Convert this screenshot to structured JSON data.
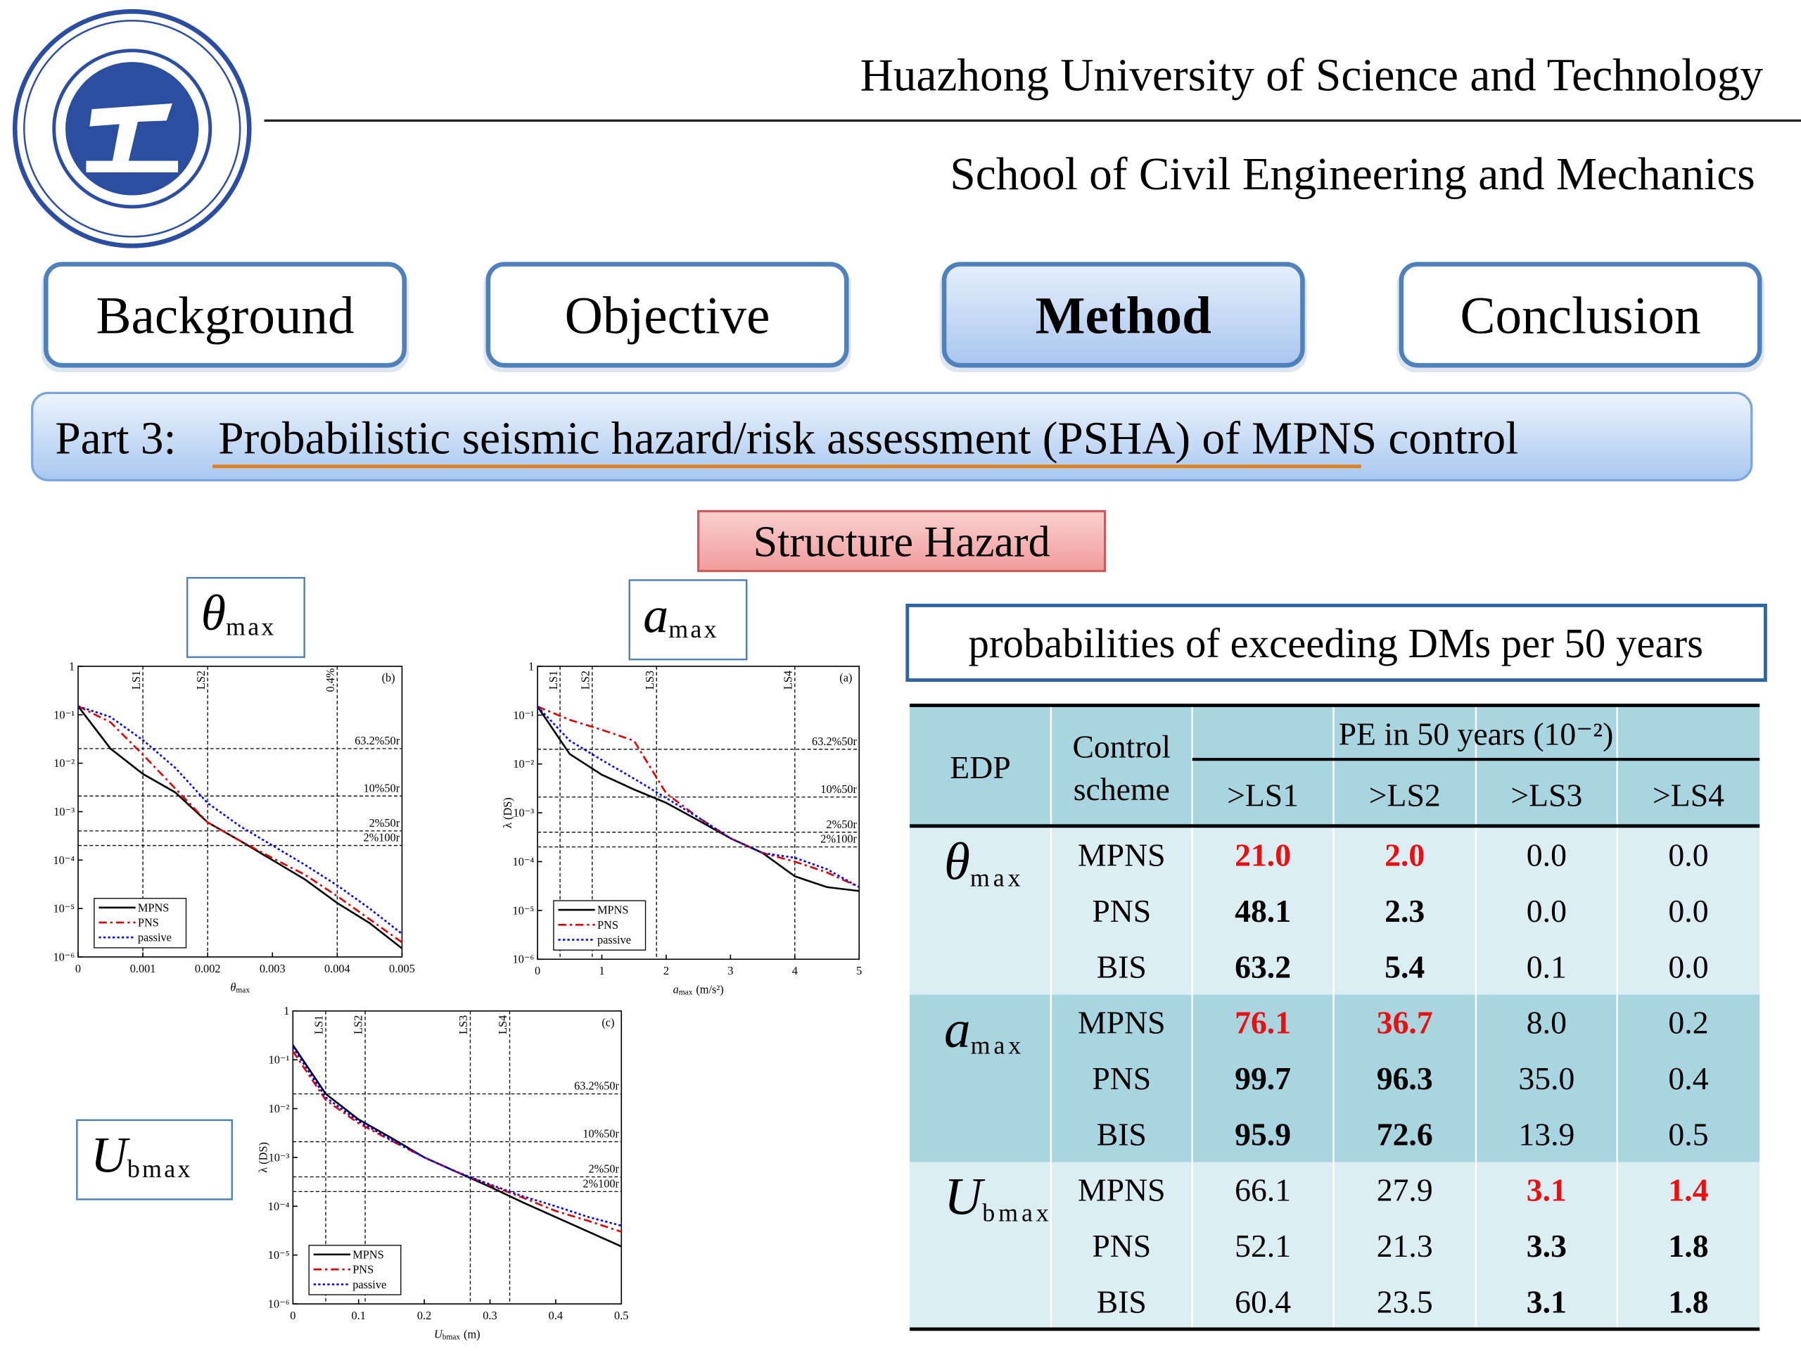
{
  "header": {
    "university": "Huazhong University of Science and Technology",
    "school": "School of Civil Engineering and Mechanics"
  },
  "nav": [
    "Background",
    "Objective",
    "Method",
    "Conclusion"
  ],
  "part": {
    "label": "Part 3:",
    "title": "Probabilistic seismic hazard/risk assessment (PSHA) of MPNS control"
  },
  "section": "Structure Hazard",
  "chart_data": [
    {
      "type": "line",
      "title": "θ",
      "title_sub": "max",
      "panel": "(b)",
      "xlabel": {
        "text": "θ",
        "sub": "max"
      },
      "x": [
        0,
        0.0005,
        0.001,
        0.0015,
        0.002,
        0.0025,
        0.003,
        0.0035,
        0.004,
        0.0045,
        0.005
      ],
      "xlim": [
        0,
        0.005
      ],
      "xticks": [
        0,
        0.001,
        0.002,
        0.003,
        0.004,
        0.005
      ],
      "ylim": [
        1e-06,
        1
      ],
      "yticks": [
        {
          "value": 1e-06,
          "label": "10⁻⁶"
        },
        {
          "value": 1e-05,
          "label": "10⁻⁵"
        },
        {
          "value": 0.0001,
          "label": "10⁻⁴"
        },
        {
          "value": 0.001,
          "label": "10⁻³"
        },
        {
          "value": 0.01,
          "label": "10⁻²"
        },
        {
          "value": 0.1,
          "label": "10⁻¹"
        },
        1
      ],
      "log_y": true,
      "vlines": [
        {
          "value": 0.001,
          "label": "LS1"
        },
        {
          "value": 0.002,
          "label": "LS2"
        },
        {
          "value": 0.004,
          "label": "0.4%"
        }
      ],
      "hlines": [
        {
          "value": 0.02,
          "label": "63.2%50r"
        },
        {
          "value": 0.0021,
          "label": "10%50r"
        },
        {
          "value": 0.0004,
          "label": "2%50r"
        },
        {
          "value": 0.0002,
          "label": "2%100r"
        }
      ],
      "legend": "lower left",
      "series": [
        {
          "name": "MPNS",
          "color": "#000000",
          "dash": "solid",
          "values": [
            0.15,
            0.02,
            0.006,
            0.0025,
            0.0006,
            0.00025,
            0.0001,
            4e-05,
            1.3e-05,
            5e-06,
            1.5e-06
          ]
        },
        {
          "name": "PNS",
          "color": "#e00000",
          "dash": "dashdot",
          "values": [
            0.15,
            0.07,
            0.015,
            0.003,
            0.0006,
            0.00025,
            0.00011,
            5e-05,
            1.8e-05,
            6e-06,
            2e-06
          ]
        },
        {
          "name": "passive",
          "color": "#0000ff",
          "dash": "dot",
          "values": [
            0.15,
            0.09,
            0.03,
            0.008,
            0.0015,
            0.0005,
            0.0002,
            8e-05,
            3e-05,
            1e-05,
            3e-06
          ]
        }
      ]
    },
    {
      "type": "line",
      "title": "a",
      "title_sub": "max",
      "panel": "(a)",
      "xlabel": {
        "text": "a",
        "sub": "max",
        "unit": "(m/s²)"
      },
      "ylabel": "λ (DS)",
      "x": [
        0,
        0.5,
        1,
        1.5,
        2,
        2.5,
        3,
        3.5,
        4,
        4.5,
        5
      ],
      "xlim": [
        0,
        5
      ],
      "xticks": [
        0,
        1,
        2,
        3,
        4,
        5
      ],
      "ylim": [
        1e-06,
        1
      ],
      "yticks": [
        {
          "value": 1e-06,
          "label": "10⁻⁶"
        },
        {
          "value": 1e-05,
          "label": "10⁻⁵"
        },
        {
          "value": 0.0001,
          "label": "10⁻⁴"
        },
        {
          "value": 0.001,
          "label": "10⁻³"
        },
        {
          "value": 0.01,
          "label": "10⁻²"
        },
        {
          "value": 0.1,
          "label": "10⁻¹"
        },
        1
      ],
      "log_y": true,
      "vlines": [
        {
          "value": 0.35,
          "label": "LS1"
        },
        {
          "value": 0.85,
          "label": "LS2"
        },
        {
          "value": 1.85,
          "label": "LS3"
        },
        {
          "value": 4,
          "label": "LS4"
        }
      ],
      "hlines": [
        {
          "value": 0.02,
          "label": "63.2%50r"
        },
        {
          "value": 0.0021,
          "label": "10%50r"
        },
        {
          "value": 0.0004,
          "label": "2%50r"
        },
        {
          "value": 0.0002,
          "label": "2%100r"
        }
      ],
      "legend": "lower left",
      "series": [
        {
          "name": "MPNS",
          "color": "#000000",
          "dash": "solid",
          "values": [
            0.15,
            0.016,
            0.006,
            0.003,
            0.0016,
            0.0007,
            0.0003,
            0.00015,
            5e-05,
            3e-05,
            2.5e-05
          ]
        },
        {
          "name": "PNS",
          "color": "#e00000",
          "dash": "dashdot",
          "values": [
            0.15,
            0.08,
            0.05,
            0.03,
            0.0025,
            0.0008,
            0.0003,
            0.00015,
            0.0001,
            6e-05,
            3e-05
          ]
        },
        {
          "name": "passive",
          "color": "#0000ff",
          "dash": "dot",
          "values": [
            0.15,
            0.03,
            0.012,
            0.005,
            0.002,
            0.0008,
            0.0003,
            0.00015,
            0.00012,
            7e-05,
            3e-05
          ]
        }
      ]
    },
    {
      "type": "line",
      "title": "U",
      "title_sub": "bmax",
      "panel": "(c)",
      "xlabel": {
        "text": "U",
        "sub": "bmax",
        "unit": "(m)"
      },
      "ylabel": "λ (DS)",
      "x": [
        0,
        0.05,
        0.1,
        0.15,
        0.2,
        0.25,
        0.3,
        0.35,
        0.4,
        0.45,
        0.5
      ],
      "xlim": [
        0,
        0.5
      ],
      "xticks": [
        0,
        0.1,
        0.2,
        0.3,
        0.4,
        0.5
      ],
      "ylim": [
        1e-06,
        1
      ],
      "yticks": [
        {
          "value": 1e-06,
          "label": "10⁻⁶"
        },
        {
          "value": 1e-05,
          "label": "10⁻⁵"
        },
        {
          "value": 0.0001,
          "label": "10⁻⁴"
        },
        {
          "value": 0.001,
          "label": "10⁻³"
        },
        {
          "value": 0.01,
          "label": "10⁻²"
        },
        {
          "value": 0.1,
          "label": "10⁻¹"
        },
        1
      ],
      "log_y": true,
      "vlines": [
        {
          "value": 0.05,
          "label": "LS1"
        },
        {
          "value": 0.11,
          "label": "LS2"
        },
        {
          "value": 0.27,
          "label": "LS3"
        },
        {
          "value": 0.33,
          "label": "LS4"
        }
      ],
      "hlines": [
        {
          "value": 0.02,
          "label": "63.2%50r"
        },
        {
          "value": 0.0021,
          "label": "10%50r"
        },
        {
          "value": 0.0004,
          "label": "2%50r"
        },
        {
          "value": 0.0002,
          "label": "2%100r"
        }
      ],
      "legend": "lower left",
      "series": [
        {
          "name": "MPNS",
          "color": "#000000",
          "dash": "solid",
          "values": [
            0.2,
            0.02,
            0.006,
            0.0025,
            0.001,
            0.0005,
            0.00025,
            0.00012,
            6e-05,
            3e-05,
            1.5e-05
          ]
        },
        {
          "name": "PNS",
          "color": "#e00000",
          "dash": "dashdot",
          "values": [
            0.15,
            0.015,
            0.005,
            0.0022,
            0.001,
            0.0005,
            0.00027,
            0.00015,
            8e-05,
            5e-05,
            3e-05
          ]
        },
        {
          "name": "passive",
          "color": "#0000ff",
          "dash": "dot",
          "values": [
            0.18,
            0.017,
            0.0055,
            0.0023,
            0.001,
            0.0005,
            0.00028,
            0.00016,
            0.0001,
            6e-05,
            4e-05
          ]
        }
      ]
    }
  ],
  "table": {
    "caption": "probabilities of exceeding DMs per 50 years",
    "header": {
      "edp": "EDP",
      "scheme": [
        "Control",
        "scheme"
      ],
      "group": "PE in 50 years (10⁻²)",
      "columns": [
        ">LS1",
        ">LS2",
        ">LS3",
        ">LS4"
      ]
    },
    "groups": [
      {
        "edp": "θ",
        "edp_sub": "max",
        "rows": [
          {
            "scheme": "MPNS",
            "values": [
              "21.0",
              "2.0",
              "0.0",
              "0.0"
            ],
            "styles": [
              "red",
              "red",
              "normal",
              "normal"
            ]
          },
          {
            "scheme": "PNS",
            "values": [
              "48.1",
              "2.3",
              "0.0",
              "0.0"
            ],
            "styles": [
              "bold",
              "bold",
              "normal",
              "normal"
            ]
          },
          {
            "scheme": "BIS",
            "values": [
              "63.2",
              "5.4",
              "0.1",
              "0.0"
            ],
            "styles": [
              "bold",
              "bold",
              "normal",
              "normal"
            ]
          }
        ]
      },
      {
        "edp": "a",
        "edp_sub": "max",
        "rows": [
          {
            "scheme": "MPNS",
            "values": [
              "76.1",
              "36.7",
              "8.0",
              "0.2"
            ],
            "styles": [
              "red",
              "red",
              "normal",
              "normal"
            ]
          },
          {
            "scheme": "PNS",
            "values": [
              "99.7",
              "96.3",
              "35.0",
              "0.4"
            ],
            "styles": [
              "bold",
              "bold",
              "normal",
              "normal"
            ]
          },
          {
            "scheme": "BIS",
            "values": [
              "95.9",
              "72.6",
              "13.9",
              "0.5"
            ],
            "styles": [
              "bold",
              "bold",
              "normal",
              "normal"
            ]
          }
        ]
      },
      {
        "edp": "U",
        "edp_sub": "bmax",
        "rows": [
          {
            "scheme": "MPNS",
            "values": [
              "66.1",
              "27.9",
              "3.1",
              "1.4"
            ],
            "styles": [
              "normal",
              "normal",
              "red",
              "red"
            ]
          },
          {
            "scheme": "PNS",
            "values": [
              "52.1",
              "21.3",
              "3.3",
              "1.8"
            ],
            "styles": [
              "normal",
              "normal",
              "bold",
              "bold"
            ]
          },
          {
            "scheme": "BIS",
            "values": [
              "60.4",
              "23.5",
              "3.1",
              "1.8"
            ],
            "styles": [
              "normal",
              "normal",
              "bold",
              "bold"
            ]
          }
        ]
      }
    ]
  }
}
